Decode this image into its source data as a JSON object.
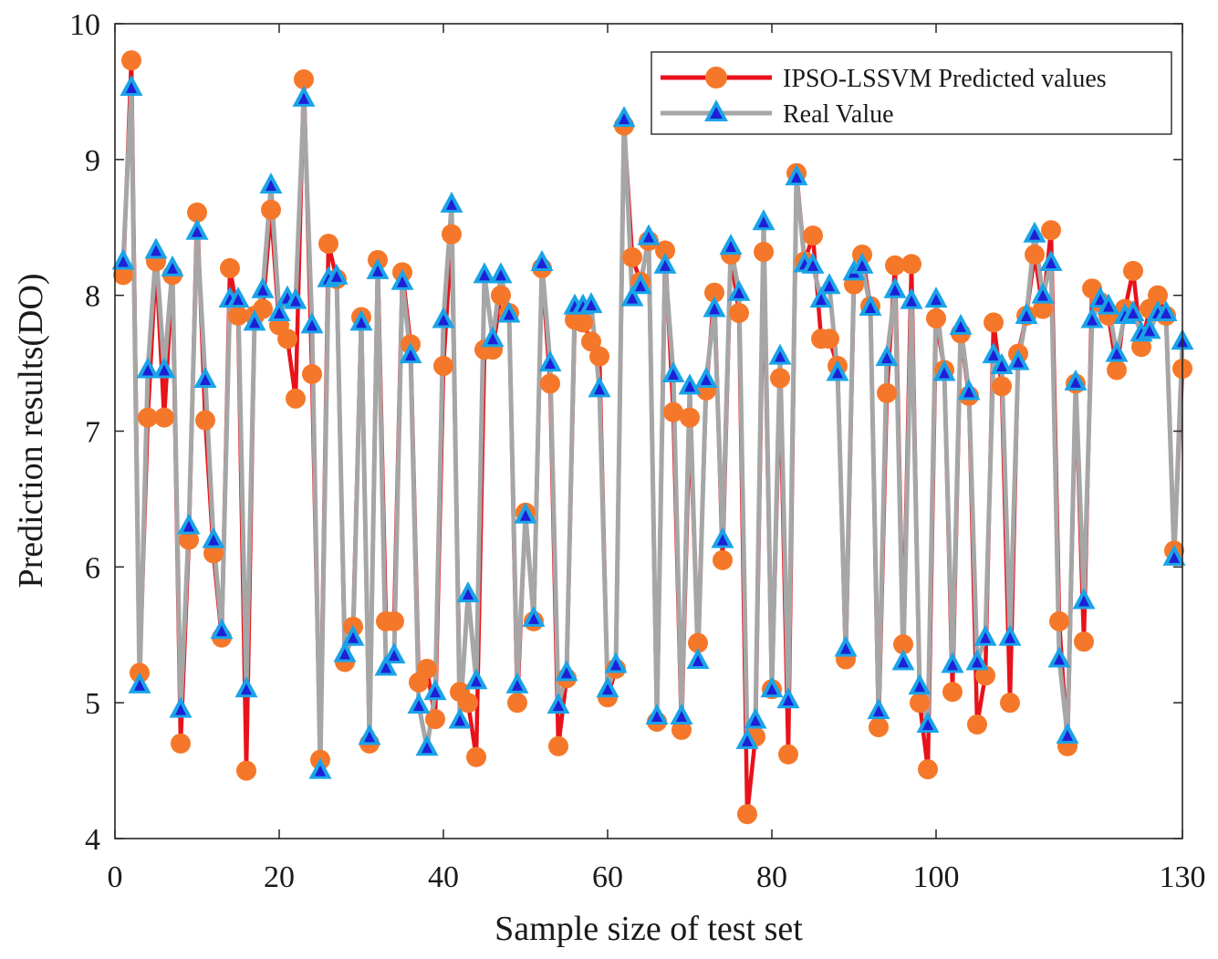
{
  "chart_data": {
    "type": "line",
    "title": "",
    "xlabel": "Sample size of test set",
    "ylabel": "Prediction results(DO)",
    "xlim": [
      0,
      130
    ],
    "ylim": [
      4,
      10
    ],
    "xticks": [
      0,
      20,
      40,
      60,
      80,
      100,
      130
    ],
    "xtick_labels": [
      "0",
      "20",
      "40",
      "60",
      "80",
      "100",
      "130"
    ],
    "yticks": [
      4,
      5,
      6,
      7,
      8,
      9,
      10
    ],
    "ytick_labels": [
      "4",
      "5",
      "6",
      "7",
      "8",
      "9",
      "10"
    ],
    "grid": false,
    "legend_position": "top-right",
    "x": [
      1,
      2,
      3,
      4,
      5,
      6,
      7,
      8,
      9,
      10,
      11,
      12,
      13,
      14,
      15,
      16,
      17,
      18,
      19,
      20,
      21,
      22,
      23,
      24,
      25,
      26,
      27,
      28,
      29,
      30,
      31,
      32,
      33,
      34,
      35,
      36,
      37,
      38,
      39,
      40,
      41,
      42,
      43,
      44,
      45,
      46,
      47,
      48,
      49,
      50,
      51,
      52,
      53,
      54,
      55,
      56,
      57,
      58,
      59,
      60,
      61,
      62,
      63,
      64,
      65,
      66,
      67,
      68,
      69,
      70,
      71,
      72,
      73,
      74,
      75,
      76,
      77,
      78,
      79,
      80,
      81,
      82,
      83,
      84,
      85,
      86,
      87,
      88,
      89,
      90,
      91,
      92,
      93,
      94,
      95,
      96,
      97,
      98,
      99,
      100,
      101,
      102,
      103,
      104,
      105,
      106,
      107,
      108,
      109,
      110,
      111,
      112,
      113,
      114,
      115,
      116,
      117,
      118,
      119,
      120,
      121,
      122,
      123,
      124,
      125,
      126,
      127,
      128,
      129,
      130
    ],
    "series": [
      {
        "name": "IPSO-LSSVM Predicted values",
        "color": "#e8121b",
        "marker_color": "#f5782a",
        "marker": "circle",
        "values": [
          8.15,
          9.73,
          5.22,
          7.1,
          8.25,
          7.1,
          8.15,
          4.7,
          6.2,
          8.61,
          7.08,
          6.1,
          5.48,
          8.2,
          7.85,
          4.5,
          7.85,
          7.9,
          8.63,
          7.78,
          7.68,
          7.24,
          9.59,
          7.42,
          4.58,
          8.38,
          8.12,
          5.3,
          5.56,
          7.84,
          4.7,
          8.26,
          5.6,
          5.6,
          8.17,
          7.64,
          5.15,
          5.25,
          4.88,
          7.48,
          8.45,
          5.08,
          5.0,
          4.6,
          7.6,
          7.6,
          8.0,
          7.87,
          5.0,
          6.4,
          5.6,
          8.2,
          7.35,
          4.68,
          5.18,
          7.82,
          7.8,
          7.66,
          7.55,
          5.04,
          5.25,
          9.25,
          8.28,
          8.1,
          8.4,
          4.86,
          8.33,
          7.14,
          4.8,
          7.1,
          5.44,
          7.3,
          8.02,
          6.05,
          8.3,
          7.87,
          4.18,
          4.75,
          8.32,
          5.1,
          7.39,
          4.62,
          8.9,
          8.25,
          8.44,
          7.68,
          7.68,
          7.48,
          5.32,
          8.08,
          8.3,
          7.92,
          4.82,
          7.28,
          8.22,
          5.43,
          8.23,
          5.0,
          4.51,
          7.83,
          7.45,
          5.08,
          7.72,
          7.26,
          4.84,
          5.2,
          7.8,
          7.33,
          5.0,
          7.57,
          7.85,
          8.3,
          7.9,
          8.48,
          5.6,
          4.68,
          7.35,
          5.45,
          8.05,
          7.95,
          7.85,
          7.45,
          7.9,
          8.18,
          7.62,
          7.9,
          8.0,
          7.85,
          6.12,
          7.46
        ]
      },
      {
        "name": "Real Value",
        "color": "#a6a6a6",
        "marker_color": "#1aa3e8",
        "marker_inner_color": "#1f1fd6",
        "marker": "triangle",
        "values": [
          8.25,
          9.53,
          5.13,
          7.45,
          8.33,
          7.45,
          8.2,
          4.95,
          6.3,
          8.47,
          7.38,
          6.2,
          5.53,
          7.97,
          7.97,
          5.1,
          7.8,
          8.04,
          8.81,
          7.87,
          7.98,
          7.96,
          9.45,
          7.78,
          4.5,
          8.12,
          8.14,
          5.36,
          5.48,
          7.8,
          4.75,
          8.18,
          5.26,
          5.35,
          8.1,
          7.56,
          4.98,
          4.67,
          5.08,
          7.82,
          8.67,
          4.87,
          5.8,
          5.16,
          8.15,
          7.68,
          8.15,
          7.86,
          5.13,
          6.38,
          5.62,
          8.24,
          7.5,
          4.98,
          5.22,
          7.92,
          7.92,
          7.93,
          7.31,
          5.1,
          5.28,
          9.3,
          7.98,
          8.07,
          8.43,
          4.9,
          8.22,
          7.42,
          4.9,
          7.33,
          5.31,
          7.38,
          7.9,
          6.2,
          8.36,
          8.02,
          4.72,
          4.87,
          8.54,
          5.1,
          7.55,
          5.02,
          8.87,
          8.23,
          8.22,
          7.97,
          8.07,
          7.43,
          5.4,
          8.17,
          8.22,
          7.91,
          4.94,
          7.54,
          8.04,
          5.3,
          7.96,
          5.12,
          4.84,
          7.97,
          7.43,
          5.28,
          7.77,
          7.29,
          5.3,
          5.48,
          7.56,
          7.48,
          5.48,
          7.51,
          7.85,
          8.45,
          8.0,
          8.24,
          5.32,
          4.76,
          7.36,
          5.75,
          7.82,
          7.97,
          7.92,
          7.57,
          7.85,
          7.87,
          7.72,
          7.74,
          7.87,
          7.87,
          6.07,
          7.66
        ]
      }
    ]
  }
}
